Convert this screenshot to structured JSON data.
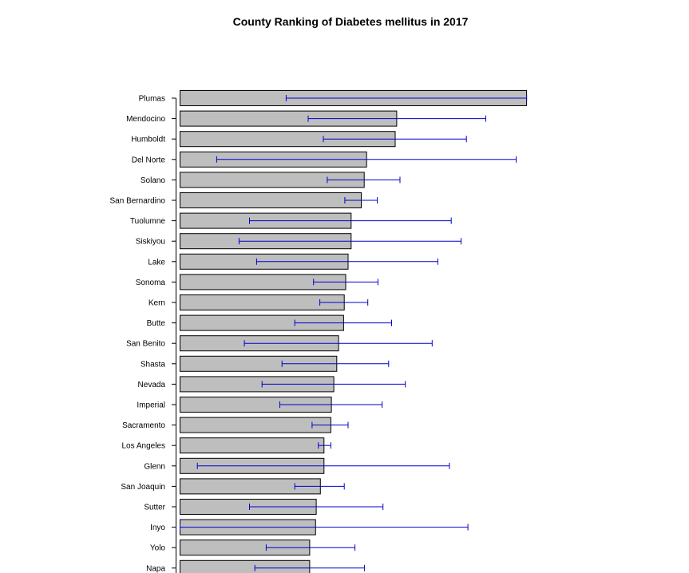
{
  "chart_data": {
    "type": "bar",
    "orientation": "horizontal",
    "title": "County Ranking of Diabetes mellitus in 2017",
    "xlabel": "",
    "ylabel": "",
    "grid": false,
    "xlim": [
      0,
      116
    ],
    "colors": {
      "bar_fill": "#bebebe",
      "bar_stroke": "#000000",
      "error_bar": "#0000cd"
    },
    "categories": [
      "Plumas",
      "Mendocino",
      "Humboldt",
      "Del Norte",
      "Solano",
      "San Bernardino",
      "Tuolumne",
      "Siskiyou",
      "Lake",
      "Sonoma",
      "Kern",
      "Butte",
      "San Benito",
      "Shasta",
      "Nevada",
      "Imperial",
      "Sacramento",
      "Los Angeles",
      "Glenn",
      "San Joaquin",
      "Sutter",
      "Inyo",
      "Yolo",
      "Napa"
    ],
    "values": [
      116.3,
      72.7,
      72.2,
      62.6,
      61.8,
      60.8,
      57.4,
      57.4,
      56.4,
      55.6,
      55.1,
      54.9,
      53.2,
      52.6,
      51.6,
      50.8,
      50.6,
      48.3,
      48.3,
      47.1,
      45.7,
      45.5,
      43.5,
      43.5
    ],
    "error_low": [
      35.6,
      43.0,
      48.1,
      12.3,
      49.4,
      55.3,
      23.3,
      19.8,
      25.7,
      44.8,
      46.9,
      38.5,
      21.6,
      34.2,
      27.5,
      33.5,
      44.3,
      46.4,
      5.8,
      38.5,
      23.3,
      0,
      28.9,
      25.1
    ],
    "error_high": [
      116.3,
      102.6,
      96.1,
      112.8,
      73.8,
      66.2,
      91.0,
      94.3,
      86.5,
      66.4,
      63.0,
      71.0,
      84.6,
      70.0,
      75.6,
      67.8,
      56.4,
      50.6,
      90.4,
      55.1,
      68.1,
      96.6,
      58.7,
      61.9
    ]
  }
}
